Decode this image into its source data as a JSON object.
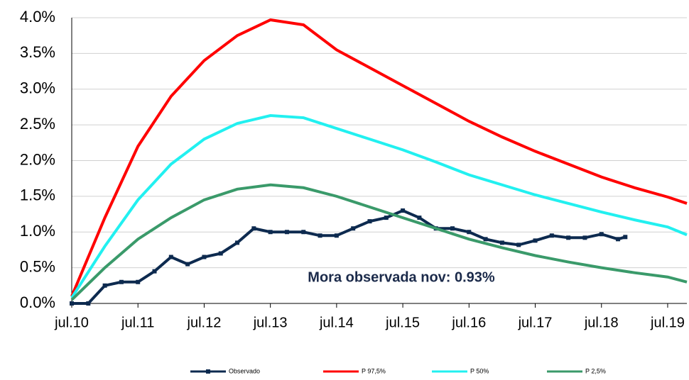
{
  "chart_data": {
    "type": "line",
    "annotation": "Mora observada nov: 0.93%",
    "xlim": [
      2010.5,
      2019.79
    ],
    "ylim": [
      0,
      4
    ],
    "xticks": [
      {
        "value": 2010.5,
        "label": "jul.10"
      },
      {
        "value": 2011.5,
        "label": "jul.11"
      },
      {
        "value": 2012.5,
        "label": "jul.12"
      },
      {
        "value": 2013.5,
        "label": "jul.13"
      },
      {
        "value": 2014.5,
        "label": "jul.14"
      },
      {
        "value": 2015.5,
        "label": "jul.15"
      },
      {
        "value": 2016.5,
        "label": "jul.16"
      },
      {
        "value": 2017.5,
        "label": "jul.17"
      },
      {
        "value": 2018.5,
        "label": "jul.18"
      },
      {
        "value": 2019.5,
        "label": "jul.19"
      }
    ],
    "yticks": [
      {
        "value": 0,
        "label": "0.0%"
      },
      {
        "value": 0.5,
        "label": "0.5%"
      },
      {
        "value": 1,
        "label": "1.0%"
      },
      {
        "value": 1.5,
        "label": "1.5%"
      },
      {
        "value": 2,
        "label": "2.0%"
      },
      {
        "value": 2.5,
        "label": "2.5%"
      },
      {
        "value": 3,
        "label": "3.0%"
      },
      {
        "value": 3.5,
        "label": "3.5%"
      },
      {
        "value": 4,
        "label": "4.0%"
      }
    ],
    "grid": true,
    "series": [
      {
        "name": "Observado",
        "color": "#0d2a4f",
        "markers": true,
        "x": [
          2010.5,
          2010.75,
          2011,
          2011.25,
          2011.5,
          2011.75,
          2012,
          2012.25,
          2012.5,
          2012.75,
          2013,
          2013.25,
          2013.5,
          2013.75,
          2014,
          2014.25,
          2014.5,
          2014.75,
          2015,
          2015.25,
          2015.5,
          2015.75,
          2016,
          2016.25,
          2016.5,
          2016.75,
          2017,
          2017.25,
          2017.5,
          2017.75,
          2018,
          2018.25,
          2018.5,
          2018.75,
          2018.86
        ],
        "values": [
          0,
          0,
          0.25,
          0.3,
          0.3,
          0.45,
          0.65,
          0.55,
          0.65,
          0.7,
          0.85,
          1.05,
          1.0,
          1.0,
          1.0,
          0.95,
          0.95,
          1.05,
          1.15,
          1.2,
          1.3,
          1.2,
          1.05,
          1.05,
          1.0,
          0.9,
          0.85,
          0.82,
          0.88,
          0.95,
          0.92,
          0.92,
          0.97,
          0.9,
          0.93
        ]
      },
      {
        "name": "P 97,5%",
        "color": "#ff0000",
        "x": [
          2010.5,
          2011,
          2011.5,
          2012,
          2012.5,
          2013,
          2013.5,
          2014,
          2014.5,
          2015,
          2015.5,
          2016,
          2016.5,
          2017,
          2017.5,
          2018,
          2018.5,
          2019,
          2019.5,
          2019.79
        ],
        "values": [
          0.1,
          1.2,
          2.2,
          2.9,
          3.4,
          3.75,
          3.97,
          3.9,
          3.55,
          3.3,
          3.05,
          2.8,
          2.55,
          2.33,
          2.13,
          1.95,
          1.77,
          1.62,
          1.49,
          1.4
        ]
      },
      {
        "name": "P 50%",
        "color": "#22f0f0",
        "x": [
          2010.5,
          2011,
          2011.5,
          2012,
          2012.5,
          2013,
          2013.5,
          2014,
          2014.5,
          2015,
          2015.5,
          2016,
          2016.5,
          2017,
          2017.5,
          2018,
          2018.5,
          2019,
          2019.5,
          2019.79
        ],
        "values": [
          0.08,
          0.8,
          1.45,
          1.95,
          2.3,
          2.52,
          2.63,
          2.6,
          2.45,
          2.3,
          2.15,
          1.98,
          1.8,
          1.66,
          1.52,
          1.4,
          1.28,
          1.17,
          1.07,
          0.96
        ]
      },
      {
        "name": "P 2,5%",
        "color": "#3a9a6a",
        "x": [
          2010.5,
          2011,
          2011.5,
          2012,
          2012.5,
          2013,
          2013.5,
          2014,
          2014.5,
          2015,
          2015.5,
          2016,
          2016.5,
          2017,
          2017.5,
          2018,
          2018.5,
          2019,
          2019.5,
          2019.79
        ],
        "values": [
          0.05,
          0.5,
          0.9,
          1.2,
          1.45,
          1.6,
          1.66,
          1.62,
          1.5,
          1.35,
          1.2,
          1.05,
          0.9,
          0.78,
          0.67,
          0.58,
          0.5,
          0.43,
          0.37,
          0.3
        ]
      }
    ]
  }
}
